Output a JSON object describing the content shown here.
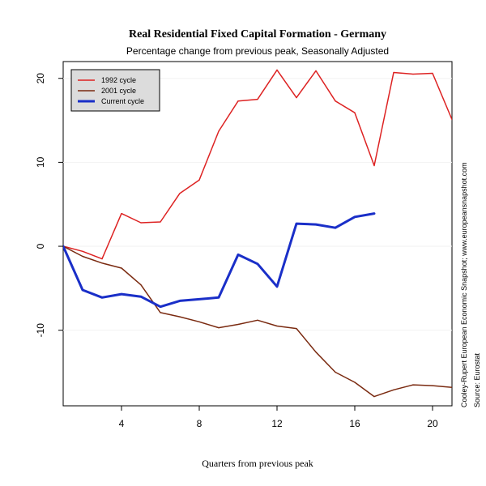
{
  "chart_data": {
    "type": "line",
    "title": "Real Residential Fixed Capital Formation - Germany",
    "subtitle": "Percentage change from previous peak, Seasonally Adjusted",
    "xlabel": "Quarters from previous peak",
    "ylabel": "",
    "xlim": [
      1,
      21
    ],
    "ylim": [
      -19,
      22
    ],
    "x_ticks": [
      4,
      8,
      12,
      16,
      20
    ],
    "y_ticks": [
      -10,
      0,
      10,
      20
    ],
    "grid": false,
    "reference_line_y": 0,
    "legend_position": "top-left",
    "series": [
      {
        "name": "1992 cycle",
        "color": "#dd2222",
        "line_width": "thin",
        "x": [
          1,
          2,
          3,
          4,
          5,
          6,
          7,
          8,
          9,
          10,
          11,
          12,
          13,
          14,
          15,
          16,
          17,
          18,
          19,
          20,
          21
        ],
        "values": [
          0.0,
          -0.6,
          -1.5,
          3.9,
          2.8,
          2.9,
          6.3,
          7.9,
          13.7,
          17.3,
          17.5,
          21.0,
          17.7,
          20.9,
          17.3,
          15.9,
          9.6,
          20.7,
          20.5,
          20.6,
          15.1
        ]
      },
      {
        "name": "2001 cycle",
        "color": "#7a2a10",
        "line_width": "thin",
        "x": [
          1,
          2,
          3,
          4,
          5,
          6,
          7,
          8,
          9,
          10,
          11,
          12,
          13,
          14,
          15,
          16,
          17,
          18,
          19,
          20,
          21
        ],
        "values": [
          0.0,
          -1.2,
          -2.0,
          -2.6,
          -4.6,
          -7.9,
          -8.4,
          -9.0,
          -9.7,
          -9.3,
          -8.8,
          -9.5,
          -9.8,
          -12.6,
          -15.0,
          -16.2,
          -17.9,
          -17.1,
          -16.5,
          -16.6,
          -16.8
        ]
      },
      {
        "name": "Current cycle",
        "color": "#1a2fc8",
        "line_width": "thick",
        "x": [
          1,
          2,
          3,
          4,
          5,
          6,
          7,
          8,
          9,
          10,
          11,
          12,
          13,
          14,
          15,
          16,
          17
        ],
        "values": [
          0.0,
          -5.2,
          -6.1,
          -5.7,
          -6.0,
          -7.2,
          -6.5,
          -6.3,
          -6.1,
          -1.0,
          -2.1,
          -4.8,
          2.7,
          2.6,
          2.2,
          3.5,
          3.9
        ]
      }
    ],
    "source_notes": [
      "Cooley-Rupert European Economic Snapshot; www.europeansnapshot.com",
      "Source: Eurostat"
    ]
  }
}
